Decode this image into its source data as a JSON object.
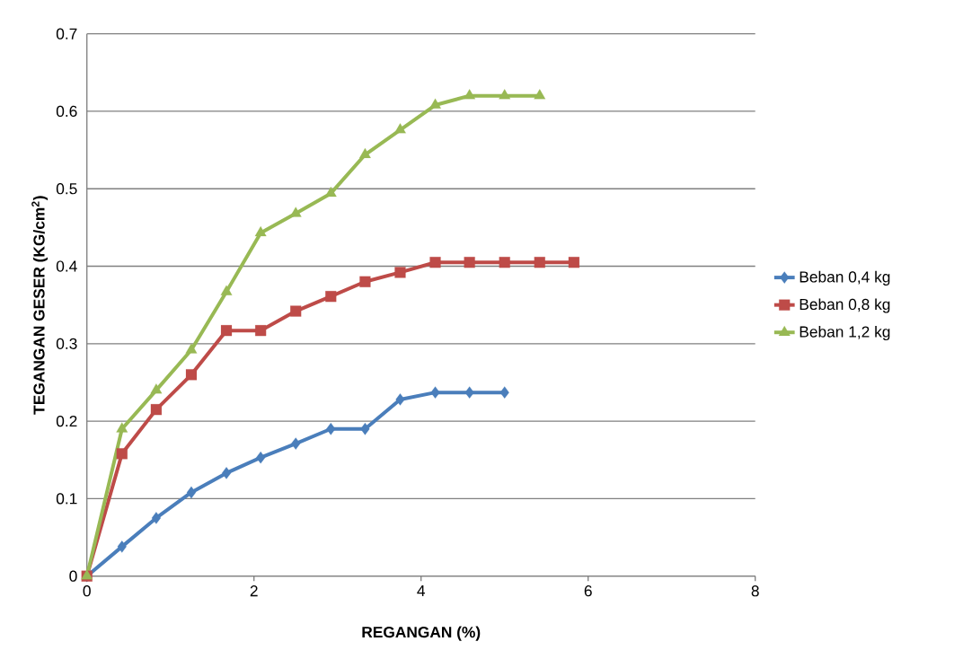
{
  "chart_data": {
    "type": "line",
    "xlabel": "REGANGAN (%)",
    "ylabel": "TEGANGAN GESER (KG/cm$^{2}$)",
    "xlim": [
      0,
      8
    ],
    "xticks": [
      0,
      2,
      4,
      6,
      8
    ],
    "ylim": [
      0,
      0.7
    ],
    "yticks": [
      0,
      0.1,
      0.2,
      0.3,
      0.4,
      0.5,
      0.6,
      0.7
    ],
    "grid": "y",
    "legend": "right",
    "line_style": "solid",
    "series": [
      {
        "name": "Beban 0,4 kg",
        "color": "#4a7ebb",
        "marker": "diamond",
        "x": [
          0,
          0.42,
          0.83,
          1.25,
          1.67,
          2.08,
          2.5,
          2.92,
          3.33,
          3.75,
          4.17,
          4.58,
          5.0
        ],
        "values": [
          0,
          0.038,
          0.075,
          0.108,
          0.133,
          0.153,
          0.171,
          0.19,
          0.19,
          0.228,
          0.237,
          0.237,
          0.237
        ]
      },
      {
        "name": "Beban 0,8 kg",
        "color": "#be4b48",
        "marker": "square",
        "x": [
          0,
          0.42,
          0.83,
          1.25,
          1.67,
          2.08,
          2.5,
          2.92,
          3.33,
          3.75,
          4.17,
          4.58,
          5.0,
          5.42,
          5.83
        ],
        "values": [
          0,
          0.158,
          0.215,
          0.26,
          0.317,
          0.317,
          0.342,
          0.361,
          0.38,
          0.392,
          0.405,
          0.405,
          0.405,
          0.405,
          0.405
        ]
      },
      {
        "name": "Beban 1,2 kg",
        "color": "#98b954",
        "marker": "triangle",
        "x": [
          0,
          0.42,
          0.83,
          1.25,
          1.67,
          2.08,
          2.5,
          2.92,
          3.33,
          3.75,
          4.17,
          4.58,
          5.0,
          5.42
        ],
        "values": [
          0,
          0.19,
          0.24,
          0.292,
          0.367,
          0.443,
          0.468,
          0.494,
          0.544,
          0.576,
          0.608,
          0.62,
          0.62,
          0.62
        ]
      }
    ]
  }
}
